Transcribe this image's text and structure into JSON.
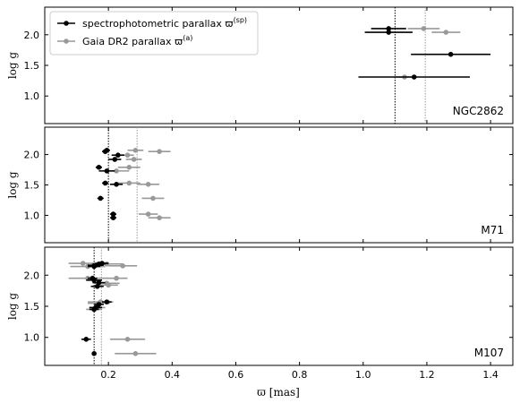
{
  "chart_data": {
    "type": "scatter",
    "layout": "three vertically stacked panels sharing the x axis",
    "xlabel": "ϖ [mas]",
    "ylabel": "log g",
    "xlim": [
      0.0,
      1.47
    ],
    "x_ticks": [
      0.2,
      0.4,
      0.6,
      0.8,
      1.0,
      1.2,
      1.4
    ],
    "x_tick_labels": [
      "0.2",
      "0.4",
      "0.6",
      "0.8",
      "1.0",
      "1.2",
      "1.4"
    ],
    "ylim": [
      0.55,
      2.45
    ],
    "y_ticks": [
      1.0,
      1.5,
      2.0
    ],
    "y_tick_labels": [
      "1.0",
      "1.5",
      "2.0"
    ],
    "legend": {
      "placement": "top-left of first panel",
      "entries": [
        {
          "series": "sp",
          "label": "spectrophotometric parallax ϖ",
          "sup": "(sp)"
        },
        {
          "series": "a",
          "label": "Gaia DR2 parallax ϖ",
          "sup": "(a)"
        }
      ]
    },
    "colors": {
      "sp": "#000000",
      "a": "#999999"
    },
    "panels": [
      {
        "label": "NGC2862",
        "vlines": [
          {
            "series": "sp",
            "x": 1.1
          },
          {
            "series": "a",
            "x": 1.195
          }
        ],
        "series": [
          {
            "key": "sp",
            "points": [
              {
                "x": 1.08,
                "xerr": 0.055,
                "y": 2.1
              },
              {
                "x": 1.08,
                "xerr": 0.075,
                "y": 2.04
              },
              {
                "x": 1.275,
                "xerr": 0.125,
                "y": 1.68
              },
              {
                "x": 1.16,
                "xerr": 0.175,
                "y": 1.31
              }
            ]
          },
          {
            "key": "a",
            "points": [
              {
                "x": 1.19,
                "xerr": 0.05,
                "y": 2.1
              },
              {
                "x": 1.26,
                "xerr": 0.045,
                "y": 2.04
              },
              {
                "x": 1.13,
                "xerr": 0.025,
                "y": 1.31
              }
            ]
          }
        ]
      },
      {
        "label": "M71",
        "vlines": [
          {
            "series": "sp",
            "x": 0.2
          },
          {
            "series": "a",
            "x": 0.29
          }
        ],
        "series": [
          {
            "key": "sp",
            "points": [
              {
                "x": 0.195,
                "xerr": 0.01,
                "y": 2.07
              },
              {
                "x": 0.19,
                "xerr": 0.01,
                "y": 2.05
              },
              {
                "x": 0.23,
                "xerr": 0.02,
                "y": 1.99
              },
              {
                "x": 0.22,
                "xerr": 0.02,
                "y": 1.92
              },
              {
                "x": 0.17,
                "xerr": 0.01,
                "y": 1.79
              },
              {
                "x": 0.195,
                "xerr": 0.025,
                "y": 1.73
              },
              {
                "x": 0.19,
                "xerr": 0.01,
                "y": 1.53
              },
              {
                "x": 0.225,
                "xerr": 0.02,
                "y": 1.51
              },
              {
                "x": 0.175,
                "xerr": 0.01,
                "y": 1.28
              },
              {
                "x": 0.215,
                "xerr": 0.01,
                "y": 1.02
              },
              {
                "x": 0.215,
                "xerr": 0.01,
                "y": 0.96
              }
            ]
          },
          {
            "key": "a",
            "points": [
              {
                "x": 0.285,
                "xerr": 0.025,
                "y": 2.07
              },
              {
                "x": 0.36,
                "xerr": 0.035,
                "y": 2.05
              },
              {
                "x": 0.26,
                "xerr": 0.02,
                "y": 1.99
              },
              {
                "x": 0.28,
                "xerr": 0.025,
                "y": 1.92
              },
              {
                "x": 0.265,
                "xerr": 0.035,
                "y": 1.79
              },
              {
                "x": 0.225,
                "xerr": 0.04,
                "y": 1.73
              },
              {
                "x": 0.265,
                "xerr": 0.035,
                "y": 1.53
              },
              {
                "x": 0.325,
                "xerr": 0.035,
                "y": 1.51
              },
              {
                "x": 0.34,
                "xerr": 0.035,
                "y": 1.28
              },
              {
                "x": 0.325,
                "xerr": 0.03,
                "y": 1.02
              },
              {
                "x": 0.36,
                "xerr": 0.035,
                "y": 0.96
              }
            ]
          }
        ]
      },
      {
        "label": "M107",
        "vlines": [
          {
            "series": "sp",
            "x": 0.155
          },
          {
            "series": "a",
            "x": 0.178
          }
        ],
        "series": [
          {
            "key": "sp",
            "points": [
              {
                "x": 0.18,
                "xerr": 0.02,
                "y": 2.19
              },
              {
                "x": 0.17,
                "xerr": 0.02,
                "y": 2.18
              },
              {
                "x": 0.16,
                "xerr": 0.025,
                "y": 2.16
              },
              {
                "x": 0.155,
                "xerr": 0.02,
                "y": 2.14
              },
              {
                "x": 0.15,
                "xerr": 0.015,
                "y": 1.95
              },
              {
                "x": 0.155,
                "xerr": 0.025,
                "y": 1.92
              },
              {
                "x": 0.17,
                "xerr": 0.02,
                "y": 1.88
              },
              {
                "x": 0.165,
                "xerr": 0.02,
                "y": 1.82
              },
              {
                "x": 0.195,
                "xerr": 0.015,
                "y": 1.57
              },
              {
                "x": 0.17,
                "xerr": 0.015,
                "y": 1.53
              },
              {
                "x": 0.16,
                "xerr": 0.02,
                "y": 1.48
              },
              {
                "x": 0.155,
                "xerr": 0.015,
                "y": 1.45
              },
              {
                "x": 0.13,
                "xerr": 0.015,
                "y": 0.97
              },
              {
                "x": 0.155,
                "xerr": 0.005,
                "y": 0.74
              }
            ]
          },
          {
            "key": "a",
            "points": [
              {
                "x": 0.12,
                "xerr": 0.045,
                "y": 2.19
              },
              {
                "x": 0.195,
                "xerr": 0.05,
                "y": 2.18
              },
              {
                "x": 0.245,
                "xerr": 0.045,
                "y": 2.15
              },
              {
                "x": 0.135,
                "xerr": 0.055,
                "y": 2.14
              },
              {
                "x": 0.135,
                "xerr": 0.06,
                "y": 1.95
              },
              {
                "x": 0.225,
                "xerr": 0.035,
                "y": 1.95
              },
              {
                "x": 0.195,
                "xerr": 0.04,
                "y": 1.87
              },
              {
                "x": 0.2,
                "xerr": 0.03,
                "y": 1.84
              },
              {
                "x": 0.175,
                "xerr": 0.04,
                "y": 1.57
              },
              {
                "x": 0.17,
                "xerr": 0.035,
                "y": 1.55
              },
              {
                "x": 0.165,
                "xerr": 0.025,
                "y": 1.48
              },
              {
                "x": 0.155,
                "xerr": 0.025,
                "y": 1.45
              },
              {
                "x": 0.26,
                "xerr": 0.055,
                "y": 0.97
              },
              {
                "x": 0.285,
                "xerr": 0.065,
                "y": 0.74
              }
            ]
          }
        ]
      }
    ]
  }
}
